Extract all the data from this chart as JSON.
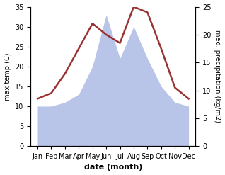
{
  "months": [
    "Jan",
    "Feb",
    "Mar",
    "Apr",
    "May",
    "Jun",
    "Jul",
    "Aug",
    "Sep",
    "Oct",
    "Nov",
    "Dec"
  ],
  "month_x": [
    0,
    1,
    2,
    3,
    4,
    5,
    6,
    7,
    8,
    9,
    10,
    11
  ],
  "temperature": [
    8.5,
    9.5,
    13.0,
    17.5,
    22.0,
    20.0,
    18.5,
    25.0,
    24.0,
    17.5,
    10.5,
    8.5
  ],
  "precipitation": [
    10,
    10,
    11,
    13,
    20,
    33,
    22,
    30,
    22,
    15,
    11,
    10
  ],
  "temp_color": "#993333",
  "precip_color": "#b8c4e8",
  "left_ylim": [
    0,
    35
  ],
  "right_ylim": [
    0,
    25
  ],
  "left_yticks": [
    0,
    5,
    10,
    15,
    20,
    25,
    30,
    35
  ],
  "right_yticks": [
    0,
    5,
    10,
    15,
    20,
    25
  ],
  "left_ylabel": "max temp (C)",
  "right_ylabel": "med. precipitation (kg/m2)",
  "xlabel": "date (month)",
  "temp_linewidth": 1.8,
  "background_color": "#ffffff",
  "label_fontsize": 7,
  "tick_fontsize": 7,
  "xlabel_fontsize": 8
}
